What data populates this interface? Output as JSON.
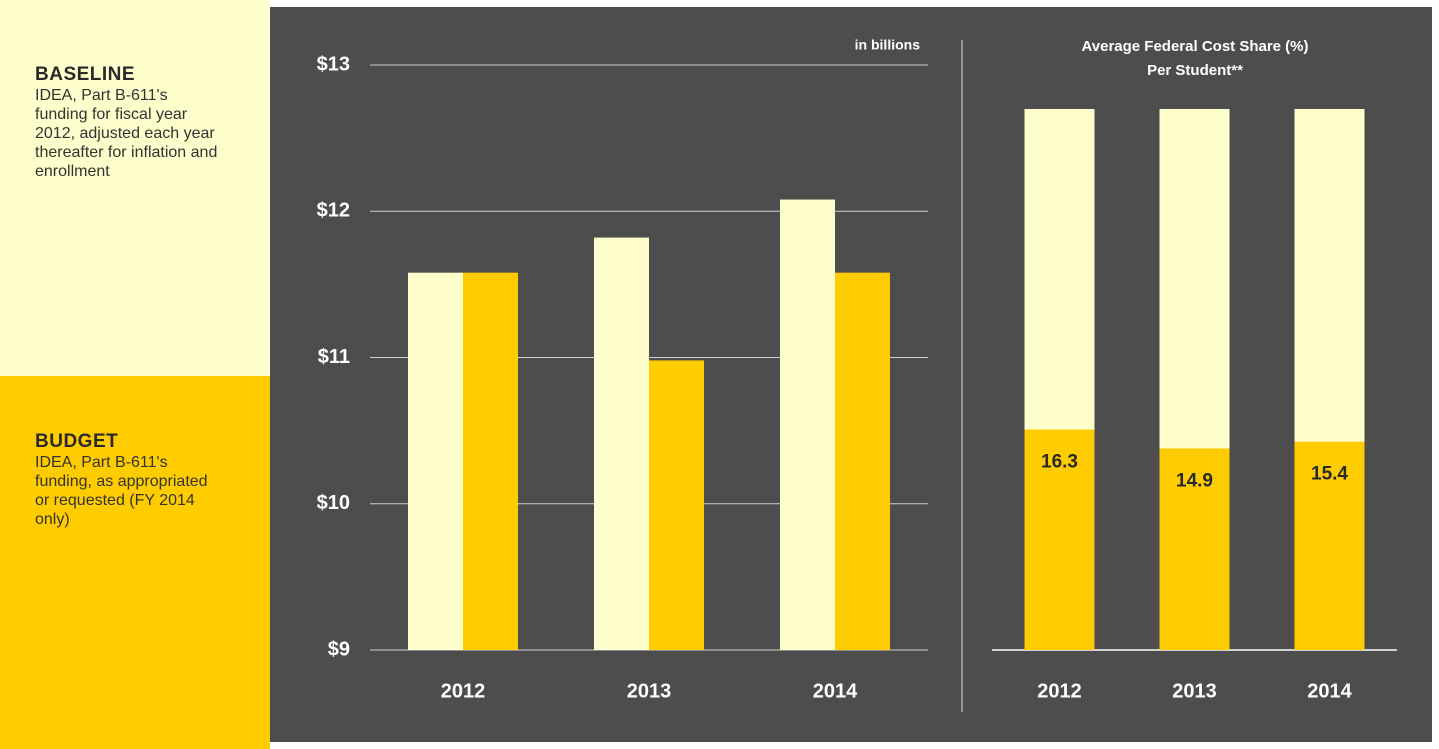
{
  "chart_data": [
    {
      "type": "bar",
      "unit_label": "in billions",
      "categories": [
        "2012",
        "2013",
        "2014"
      ],
      "series": [
        {
          "name": "BASELINE",
          "description": "IDEA, Part B-611's funding for fiscal year 2012, adjusted each year thereafter for inflation and enrollment",
          "color": "#fefdcc",
          "values": [
            11.58,
            11.82,
            12.08
          ]
        },
        {
          "name": "BUDGET",
          "description": "IDEA, Part B-611's funding, as appropriated or requested (FY 2014 only)",
          "color": "#ffcc00",
          "values": [
            11.58,
            10.98,
            11.58
          ]
        }
      ],
      "ylim": [
        9,
        13
      ],
      "yticks": [
        {
          "value": 9,
          "label": "$9"
        },
        {
          "value": 10,
          "label": "$10"
        },
        {
          "value": 11,
          "label": "$11"
        },
        {
          "value": 12,
          "label": "$12"
        },
        {
          "value": 13,
          "label": "$13"
        }
      ],
      "grid": true
    },
    {
      "type": "bar",
      "overlap": true,
      "title": [
        "Average Federal Cost Share (%)",
        "Per Student**"
      ],
      "categories": [
        "2012",
        "2013",
        "2014"
      ],
      "series": [
        {
          "color": "#fefdcc",
          "values": [
            40,
            40,
            40
          ]
        },
        {
          "color": "#ffcc00",
          "values": [
            16.3,
            14.9,
            15.4
          ],
          "value_labels_shown": true
        }
      ],
      "ylim": [
        0,
        40
      ]
    }
  ]
}
